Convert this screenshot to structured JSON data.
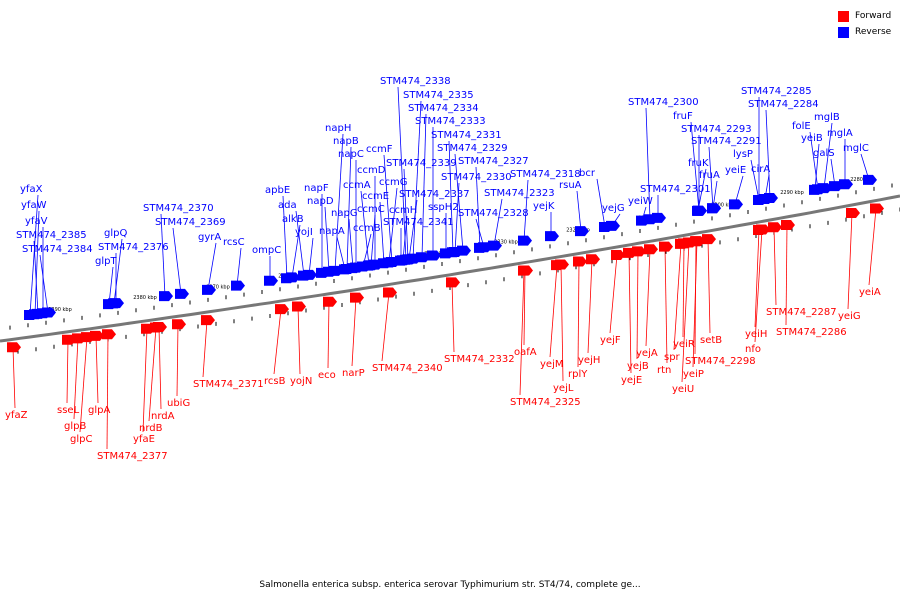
{
  "legend": {
    "forward_label": "Forward",
    "reverse_label": "Reverse",
    "forward_color": "#ff0000",
    "reverse_color": "#0000ff"
  },
  "caption": "Salmonella enterica subsp. enterica serovar Typhimurium str. ST4/74, complete ge...",
  "scale_labels": [
    "2390 kbp",
    "2380 kbp",
    "2370 kbp",
    "2360 kbp",
    "2350 kbp",
    "2340 kbp",
    "2330 kbp",
    "2320 kbp",
    "2310 kbp",
    "2300 kbp",
    "2290 kbp",
    "2280 kbp"
  ],
  "reverse_genes": [
    "yfaX",
    "yfaW",
    "yfaV",
    "STM474_2385",
    "STM474_2384",
    "glpQ",
    "glpT",
    "STM474_2376",
    "STM474_2370",
    "STM474_2369",
    "gyrA",
    "rcsC",
    "ompC",
    "apbE",
    "ada",
    "alkB",
    "yojI",
    "napF",
    "napD",
    "napA",
    "napH",
    "napB",
    "napC",
    "napG",
    "ccmA",
    "ccmB",
    "ccmC",
    "ccmD",
    "ccmE",
    "ccmF",
    "ccmG",
    "ccmH",
    "STM474_2341",
    "STM474_2339",
    "STM474_2338",
    "STM474_2335",
    "STM474_2334",
    "STM474_2333",
    "STM474_2331",
    "STM474_2329",
    "STM474_2337",
    "STM474_2330",
    "sspH2",
    "STM474_2327",
    "STM474_2328",
    "STM474_2323",
    "STM474_2318",
    "yejK",
    "rsuA",
    "bcr",
    "yejG",
    "yeiW",
    "STM474_2301",
    "STM474_2300",
    "fruF",
    "fruK",
    "fruA",
    "STM474_2293",
    "STM474_2291",
    "lysP",
    "yeiE",
    "cirA",
    "STM474_2285",
    "STM474_2284",
    "folE",
    "mglB",
    "yeiB",
    "mglA",
    "galS",
    "mglC"
  ],
  "forward_genes": [
    "yfaZ",
    "sseL",
    "glpB",
    "glpC",
    "glpA",
    "STM474_2377",
    "yfaE",
    "nrdB",
    "nrdA",
    "ubiG",
    "STM474_2371",
    "rcsB",
    "yojN",
    "eco",
    "narP",
    "STM474_2340",
    "STM474_2332",
    "oafA",
    "STM474_2325",
    "yejM",
    "yejL",
    "rplY",
    "yejH",
    "yejF",
    "yejE",
    "yejB",
    "yejA",
    "spr",
    "rtn",
    "yeiR",
    "yeiP",
    "yeiU",
    "setB",
    "STM474_2298",
    "yeiH",
    "nfo",
    "STM474_2287",
    "STM474_2286",
    "yeiG",
    "yeiA"
  ]
}
